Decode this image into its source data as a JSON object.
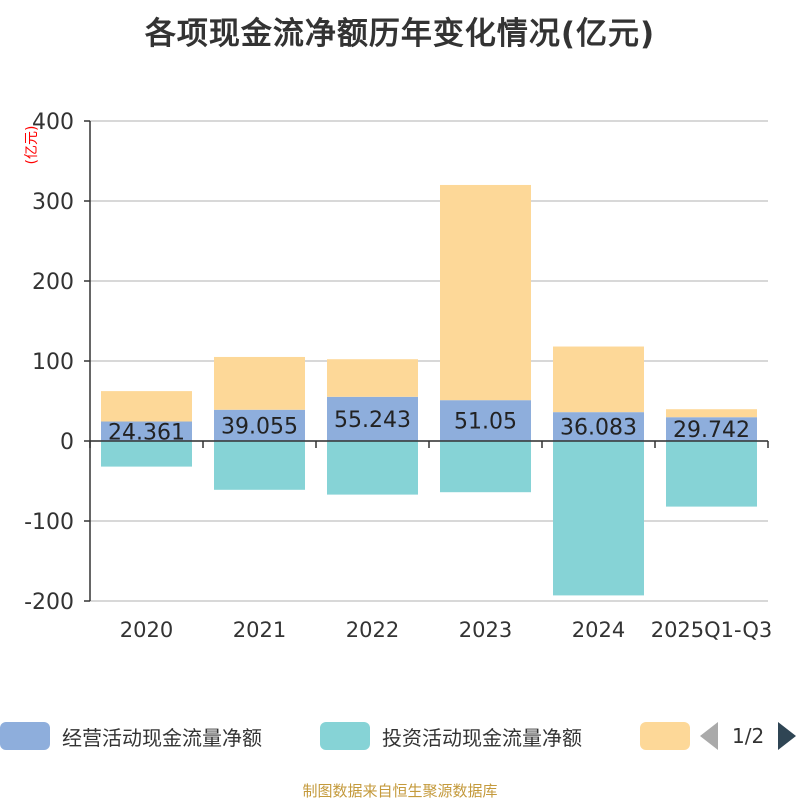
{
  "colors": {
    "operating": "#8eaedc",
    "investing": "#86d3d6",
    "financing": "#fdd898",
    "axis": "#333333",
    "grid": "#cccccc",
    "ylabel": "#ff0000",
    "source": "#c49a3c"
  },
  "legend": {
    "page_indicator": "1/2"
  },
  "source_text": "制图数据来自恒生聚源数据库",
  "chart_data": {
    "type": "bar",
    "stacked": true,
    "title": "各项现金流净额历年变化情况(亿元)",
    "ylabel": "(亿元)",
    "ylim": [
      -200,
      400
    ],
    "yticks": [
      -200,
      -100,
      0,
      100,
      200,
      300,
      400
    ],
    "grid": true,
    "legend_position": "bottom",
    "categories": [
      "2020",
      "2021",
      "2022",
      "2023",
      "2024",
      "2025Q1-Q3"
    ],
    "series": [
      {
        "name": "经营活动现金流量净额",
        "color": "#8eaedc",
        "values": [
          24.361,
          39.055,
          55.243,
          51.05,
          36.083,
          29.742
        ],
        "labels": [
          "24.361",
          "39.055",
          "55.243",
          "51.05",
          "36.083",
          "29.742"
        ]
      },
      {
        "name": "投资活动现金流量净额",
        "color": "#86d3d6",
        "values": [
          -32,
          -61,
          -67,
          -64,
          -193,
          -82
        ]
      },
      {
        "color": "#fdd898",
        "values": [
          38,
          66,
          47,
          269,
          82,
          10
        ]
      }
    ]
  }
}
